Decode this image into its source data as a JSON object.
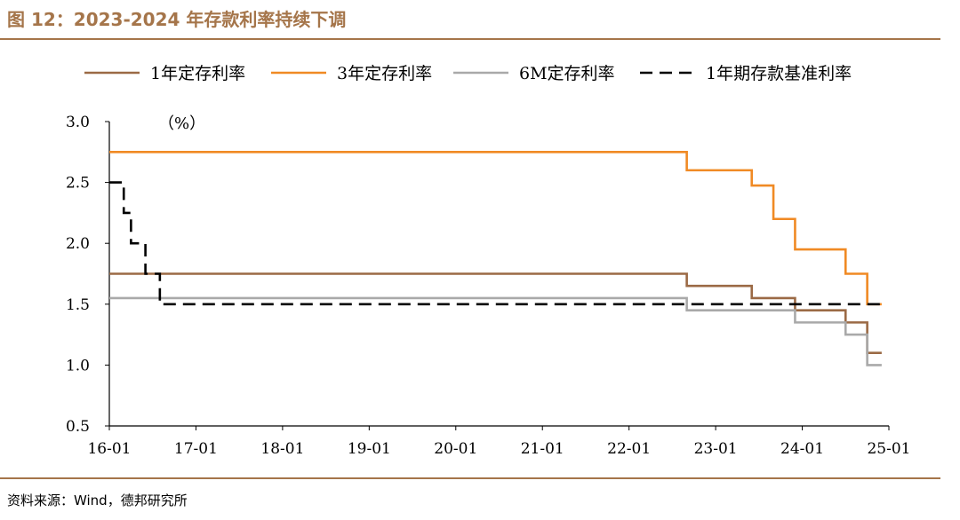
{
  "figure": {
    "title": "图 12：2023-2024 年存款利率持续下调",
    "source": "资料来源：Wind，德邦研究所"
  },
  "colors": {
    "accent": "#a5754a",
    "series_1y": "#9b6a45",
    "series_3y": "#f08a24",
    "series_6m": "#a9a9a9",
    "series_benchmark": "#000000"
  },
  "chart_data": {
    "type": "line",
    "subtype": "step",
    "unit_label": "（%）",
    "xlabel": "",
    "ylabel": "",
    "xlim": [
      "2016-01",
      "2025-01"
    ],
    "ylim": [
      0.5,
      3.0
    ],
    "x_ticks": [
      "16-01",
      "17-01",
      "18-01",
      "19-01",
      "20-01",
      "21-01",
      "22-01",
      "23-01",
      "24-01",
      "25-01"
    ],
    "y_ticks": [
      "0.5",
      "1.0",
      "1.5",
      "2.0",
      "2.5",
      "3.0"
    ],
    "y_tick_values": [
      0.5,
      1.0,
      1.5,
      2.0,
      2.5,
      3.0
    ],
    "grid": false,
    "legend_position": "top",
    "series": [
      {
        "name": "1年定存利率",
        "color_key": "series_1y",
        "dash": false,
        "points": [
          [
            "2016-01",
            1.75
          ],
          [
            "2022-09",
            1.65
          ],
          [
            "2023-06",
            1.55
          ],
          [
            "2023-12",
            1.45
          ],
          [
            "2024-07",
            1.35
          ],
          [
            "2024-10",
            1.1
          ],
          [
            "2024-12",
            1.1
          ]
        ]
      },
      {
        "name": "3年定存利率",
        "color_key": "series_3y",
        "dash": false,
        "points": [
          [
            "2016-01",
            2.75
          ],
          [
            "2022-09",
            2.6
          ],
          [
            "2023-06",
            2.475
          ],
          [
            "2023-09",
            2.2
          ],
          [
            "2023-12",
            1.95
          ],
          [
            "2024-07",
            1.75
          ],
          [
            "2024-10",
            1.5
          ],
          [
            "2024-12",
            1.5
          ]
        ]
      },
      {
        "name": "6M定存利率",
        "color_key": "series_6m",
        "dash": false,
        "points": [
          [
            "2016-01",
            1.55
          ],
          [
            "2022-09",
            1.45
          ],
          [
            "2023-12",
            1.35
          ],
          [
            "2024-07",
            1.25
          ],
          [
            "2024-10",
            1.0
          ],
          [
            "2024-12",
            1.0
          ]
        ]
      },
      {
        "name": "1年期存款基准利率",
        "color_key": "series_benchmark",
        "dash": true,
        "points": [
          [
            "2016-01",
            2.5
          ],
          [
            "2016-03",
            2.25
          ],
          [
            "2016-04",
            2.0
          ],
          [
            "2016-06",
            1.75
          ],
          [
            "2016-08",
            1.5
          ],
          [
            "2024-12",
            1.5
          ]
        ]
      }
    ]
  }
}
